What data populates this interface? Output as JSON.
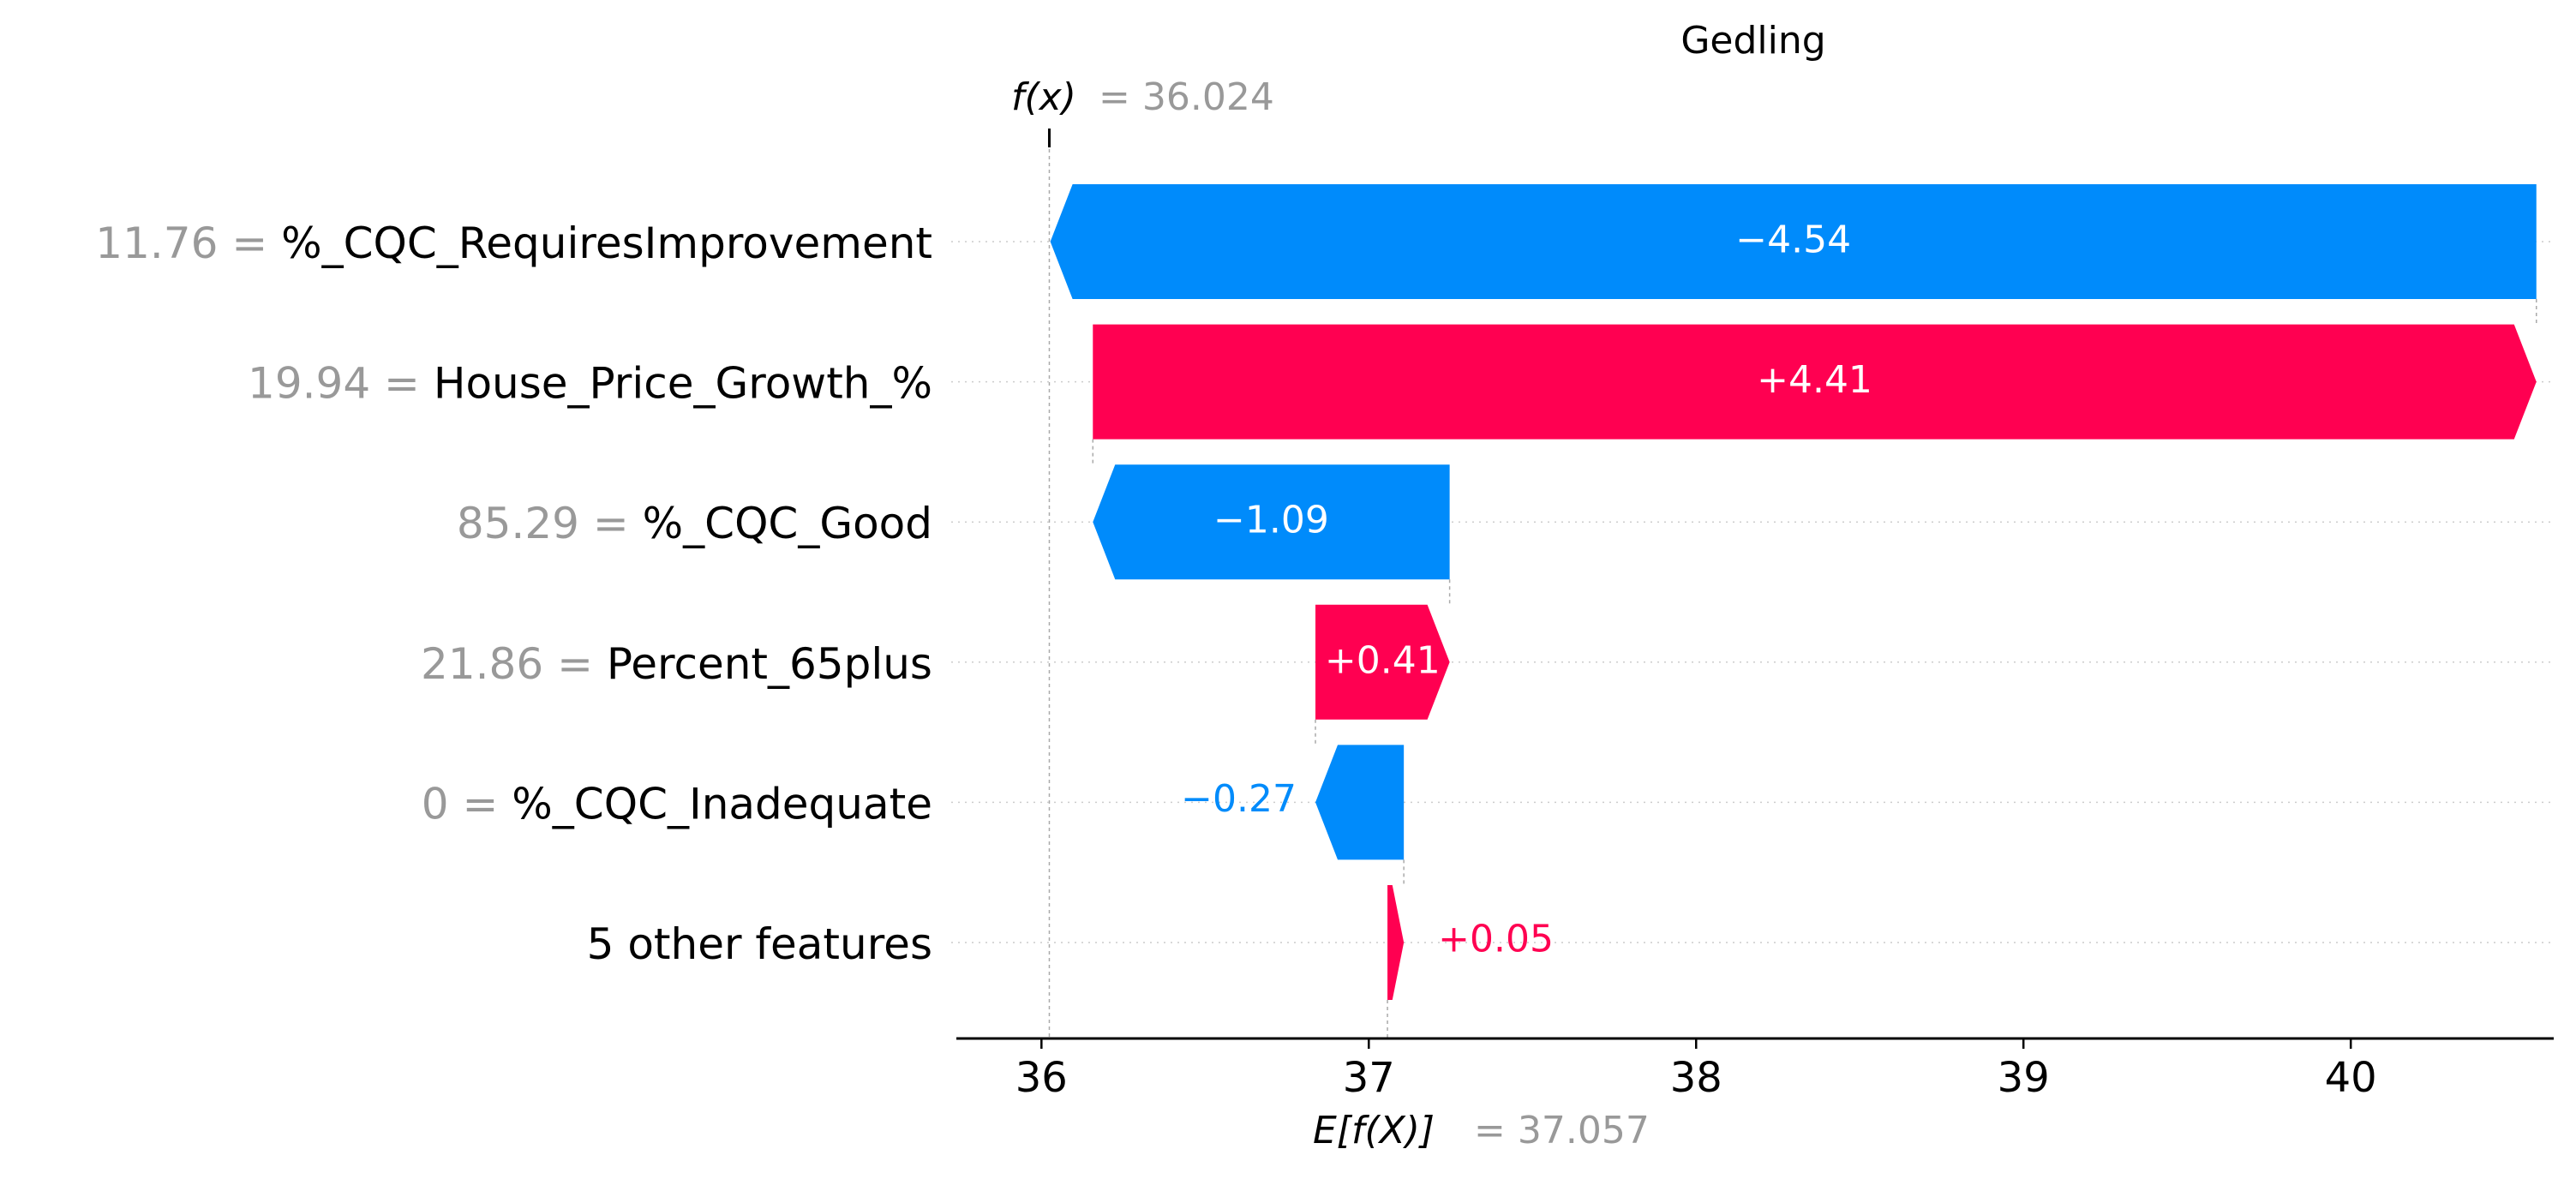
{
  "chart_data": {
    "type": "waterfall",
    "title": "Gedling",
    "fx": {
      "label_prefix": "f(x)",
      "value": 36.024,
      "value_text": "= 36.024"
    },
    "base": {
      "label_prefix": "E[f(X)]",
      "value": 37.057,
      "value_text": "= 37.057"
    },
    "xlim": [
      35.74,
      40.62
    ],
    "xticks": [
      36,
      37,
      38,
      39,
      40
    ],
    "xtick_labels": [
      "36",
      "37",
      "38",
      "39",
      "40"
    ],
    "colors": {
      "positive": "#ff0051",
      "negative": "#008bfb",
      "value_text": "#999999"
    },
    "features": [
      {
        "value_text": "11.76 =",
        "name": "%_CQC_RequiresImprovement",
        "contribution": -4.54,
        "label": "−4.54"
      },
      {
        "value_text": "19.94 =",
        "name": "House_Price_Growth_%",
        "contribution": 4.41,
        "label": "+4.41"
      },
      {
        "value_text": "85.29 =",
        "name": "%_CQC_Good",
        "contribution": -1.09,
        "label": "−1.09"
      },
      {
        "value_text": "21.86 =",
        "name": "Percent_65plus",
        "contribution": 0.41,
        "label": "+0.41"
      },
      {
        "value_text": "0 =",
        "name": "%_CQC_Inadequate",
        "contribution": -0.27,
        "label": "−0.27"
      },
      {
        "value_text": "",
        "name": "5 other features",
        "contribution": 0.05,
        "label": "+0.05"
      }
    ]
  }
}
